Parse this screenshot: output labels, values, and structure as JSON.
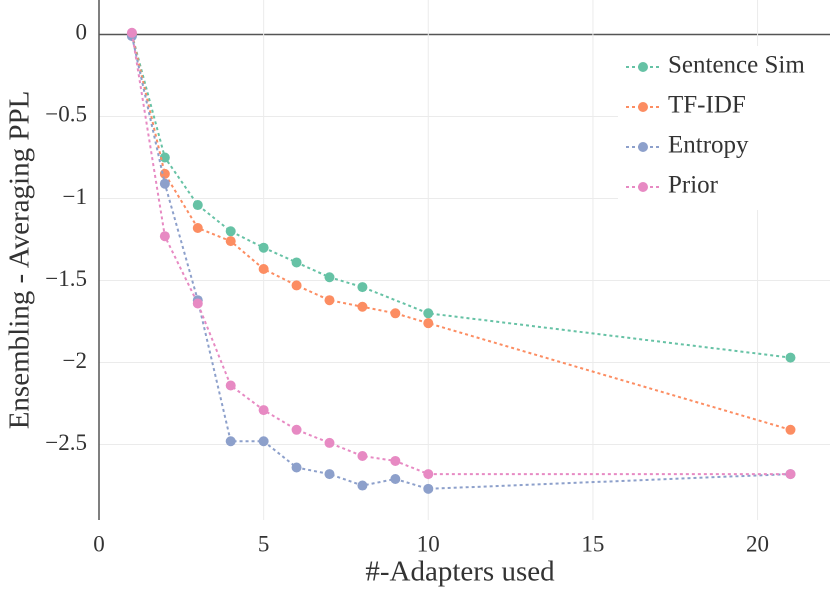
{
  "chart_data": {
    "type": "line",
    "x_label": "#-Adapters used",
    "y_label": "Ensembling - Averaging PPL",
    "xlim": [
      0,
      22.2
    ],
    "ylim": [
      -2.96,
      0.21
    ],
    "xticks": [
      0,
      5,
      10,
      15,
      20
    ],
    "yticks": [
      0,
      {
        "value": -0.5,
        "label": "−0.5"
      },
      {
        "value": -1,
        "label": "−1"
      },
      {
        "value": -1.5,
        "label": "−1.5"
      },
      {
        "value": -2,
        "label": "−2"
      },
      {
        "value": -2.5,
        "label": "−2.5"
      }
    ],
    "grid": true,
    "legend": "top-right",
    "series": [
      {
        "name": "Sentence Sim",
        "color": "#66c2a5",
        "x": [
          1,
          2,
          3,
          4,
          5,
          6,
          7,
          8,
          10,
          21
        ],
        "values": [
          0,
          -0.75,
          -1.04,
          -1.2,
          -1.3,
          -1.39,
          -1.48,
          -1.54,
          -1.7,
          -1.97
        ]
      },
      {
        "name": "TF-IDF",
        "color": "#fc8d62",
        "x": [
          1,
          2,
          3,
          4,
          5,
          6,
          7,
          8,
          9,
          10,
          21
        ],
        "values": [
          0,
          -0.85,
          -1.18,
          -1.26,
          -1.43,
          -1.53,
          -1.62,
          -1.66,
          -1.7,
          -1.76,
          -2.41
        ]
      },
      {
        "name": "Entropy",
        "color": "#8da0cb",
        "x": [
          1,
          2,
          3,
          4,
          5,
          6,
          7,
          8,
          9,
          10,
          21
        ],
        "values": [
          -0.01,
          -0.91,
          -1.62,
          -2.48,
          -2.48,
          -2.64,
          -2.68,
          -2.75,
          -2.71,
          -2.77,
          -2.68
        ]
      },
      {
        "name": "Prior",
        "color": "#e78ac3",
        "x": [
          1,
          2,
          3,
          4,
          5,
          6,
          7,
          8,
          9,
          10,
          21
        ],
        "values": [
          0.01,
          -1.23,
          -1.64,
          -2.14,
          -2.29,
          -2.41,
          -2.49,
          -2.57,
          -2.6,
          -2.68,
          -2.68
        ]
      }
    ]
  }
}
